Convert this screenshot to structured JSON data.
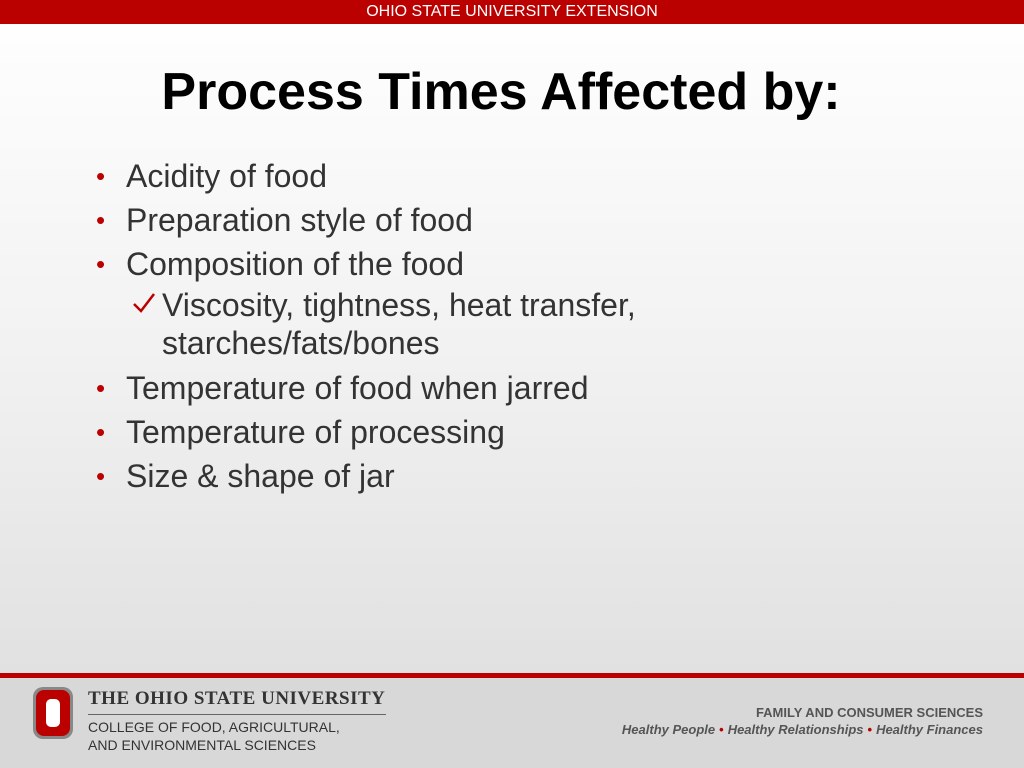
{
  "header": {
    "banner": "OHIO STATE UNIVERSITY EXTENSION"
  },
  "title": "Process Times Affected by:",
  "bullets": [
    {
      "text": "Acidity of food"
    },
    {
      "text": "Preparation style of food"
    },
    {
      "text": "Composition of the food",
      "subitems": [
        "Viscosity, tightness, heat transfer, starches/fats/bones"
      ]
    },
    {
      "text": "Temperature of food when jarred"
    },
    {
      "text": "Temperature of processing"
    },
    {
      "text": "Size & shape of jar"
    }
  ],
  "footer": {
    "university": "THE OHIO STATE UNIVERSITY",
    "college": [
      "COLLEGE OF FOOD, AGRICULTURAL,",
      "AND ENVIRONMENTAL SCIENCES"
    ],
    "department": "FAMILY AND CONSUMER SCIENCES",
    "taglines": [
      "Healthy People",
      "Healthy Relationships",
      "Healthy Finances"
    ]
  }
}
